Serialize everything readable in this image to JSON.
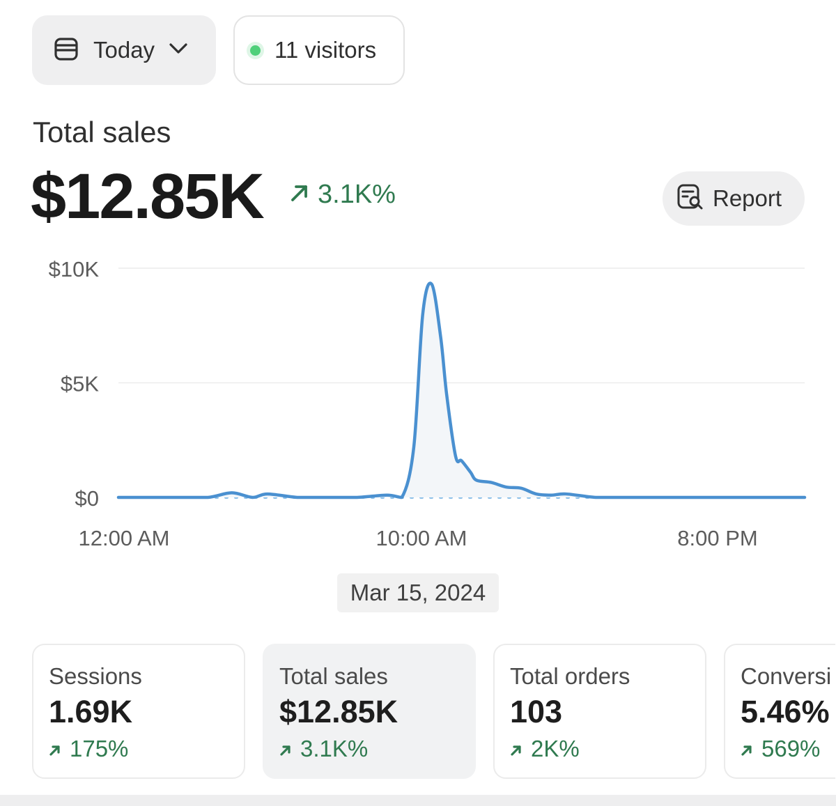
{
  "toolbar": {
    "date_label": "Today",
    "visitors_label": "11 visitors"
  },
  "headline": {
    "title": "Total sales",
    "value": "$12.85K",
    "delta": "3.1K%",
    "report_label": "Report"
  },
  "colors": {
    "line": "#4a90d0",
    "positive": "#2f7a4f",
    "live": "#4fd07a"
  },
  "chart_data": {
    "type": "line",
    "title": "",
    "xlabel": "",
    "ylabel": "",
    "y_ticks": [
      "$10K",
      "$5K",
      "$0"
    ],
    "y_tick_values": [
      10000,
      5000,
      0
    ],
    "x_ticks": [
      "12:00 AM",
      "10:00 AM",
      "8:00 PM"
    ],
    "x_tick_hours": [
      0,
      10,
      20
    ],
    "ylim": [
      0,
      10000
    ],
    "xlim": [
      0,
      23
    ],
    "grid": true,
    "series": [
      {
        "x": [
          0,
          1,
          2,
          3,
          3.8,
          4.5,
          5,
          6,
          7,
          8,
          9,
          9.5,
          9.9,
          10.2,
          10.5,
          10.8,
          11,
          11.3,
          11.5,
          11.8,
          12,
          12.5,
          13,
          13.5,
          14,
          14.5,
          15,
          16,
          17,
          18,
          19,
          20,
          21,
          22,
          23
        ],
        "y": [
          0,
          0,
          0,
          0,
          200,
          0,
          150,
          0,
          0,
          0,
          100,
          0,
          2200,
          8000,
          9300,
          7000,
          4500,
          1800,
          1600,
          1100,
          750,
          650,
          450,
          400,
          150,
          100,
          150,
          0,
          0,
          0,
          0,
          0,
          0,
          0,
          0
        ]
      },
      {
        "style": "dotted",
        "x": [
          0,
          23
        ],
        "y": [
          0,
          0
        ]
      }
    ]
  },
  "date_chip": "Mar 15, 2024",
  "cards": [
    {
      "label": "Sessions",
      "value": "1.69K",
      "delta": "175%"
    },
    {
      "label": "Total sales",
      "value": "$12.85K",
      "delta": "3.1K%"
    },
    {
      "label": "Total orders",
      "value": "103",
      "delta": "2K%"
    },
    {
      "label": "Conversi",
      "value": "5.46%",
      "delta": "569%"
    }
  ]
}
